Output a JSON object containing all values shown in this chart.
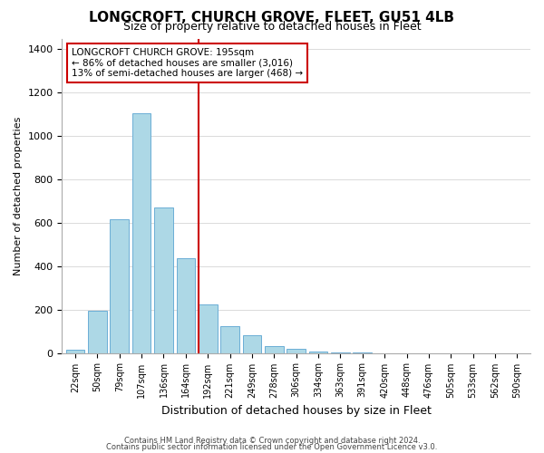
{
  "title": "LONGCROFT, CHURCH GROVE, FLEET, GU51 4LB",
  "subtitle": "Size of property relative to detached houses in Fleet",
  "xlabel": "Distribution of detached houses by size in Fleet",
  "ylabel": "Number of detached properties",
  "footer_line1": "Contains HM Land Registry data © Crown copyright and database right 2024.",
  "footer_line2": "Contains public sector information licensed under the Open Government Licence v3.0.",
  "bin_labels": [
    "22sqm",
    "50sqm",
    "79sqm",
    "107sqm",
    "136sqm",
    "164sqm",
    "192sqm",
    "221sqm",
    "249sqm",
    "278sqm",
    "306sqm",
    "334sqm",
    "363sqm",
    "391sqm",
    "420sqm",
    "448sqm",
    "476sqm",
    "505sqm",
    "533sqm",
    "562sqm",
    "590sqm"
  ],
  "bar_values": [
    15,
    195,
    615,
    1105,
    670,
    435,
    225,
    125,
    80,
    30,
    20,
    5,
    2,
    1,
    0,
    0,
    0,
    0,
    0,
    0,
    0
  ],
  "bar_color": "#add8e6",
  "bar_edge_color": "#6baed6",
  "vline_x_index": 6,
  "vline_color": "#cc0000",
  "annotation_box_text_line1": "LONGCROFT CHURCH GROVE: 195sqm",
  "annotation_box_text_line2": "← 86% of detached houses are smaller (3,016)",
  "annotation_box_text_line3": "13% of semi-detached houses are larger (468) →",
  "annotation_box_edgecolor": "#cc0000",
  "annotation_box_facecolor": "#ffffff",
  "ylim": [
    0,
    1450
  ],
  "yticks": [
    0,
    200,
    400,
    600,
    800,
    1000,
    1200,
    1400
  ]
}
